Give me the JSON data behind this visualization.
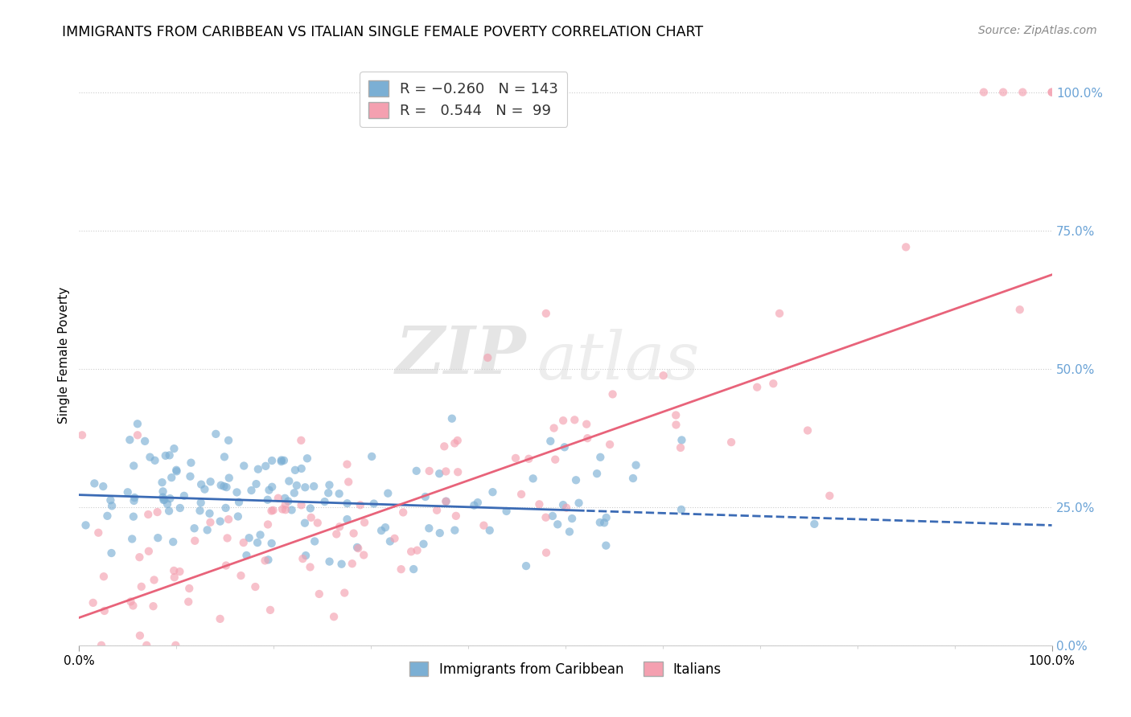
{
  "title": "IMMIGRANTS FROM CARIBBEAN VS ITALIAN SINGLE FEMALE POVERTY CORRELATION CHART",
  "source": "Source: ZipAtlas.com",
  "ylabel": "Single Female Poverty",
  "r_blue": -0.26,
  "n_blue": 143,
  "r_pink": 0.544,
  "n_pink": 99,
  "blue_color": "#7BAFD4",
  "pink_color": "#F4A0B0",
  "blue_line_color": "#3B6BB5",
  "pink_line_color": "#E8637A",
  "watermark_zip": "ZIP",
  "watermark_atlas": "atlas",
  "right_tick_color": "#6BA3D6",
  "xlim": [
    0.0,
    1.0
  ],
  "ylim": [
    0.0,
    1.05
  ],
  "right_yticks": [
    0.0,
    0.25,
    0.5,
    0.75,
    1.0
  ],
  "right_yticklabels": [
    "0.0%",
    "25.0%",
    "50.0%",
    "75.0%",
    "100.0%"
  ],
  "blue_line_solid_end": 0.52,
  "blue_line_start": 0.0,
  "blue_line_end": 1.0,
  "pink_line_start": 0.0,
  "pink_line_end": 1.0,
  "blue_intercept": 0.272,
  "blue_slope": -0.055,
  "pink_intercept": 0.05,
  "pink_slope": 0.62
}
